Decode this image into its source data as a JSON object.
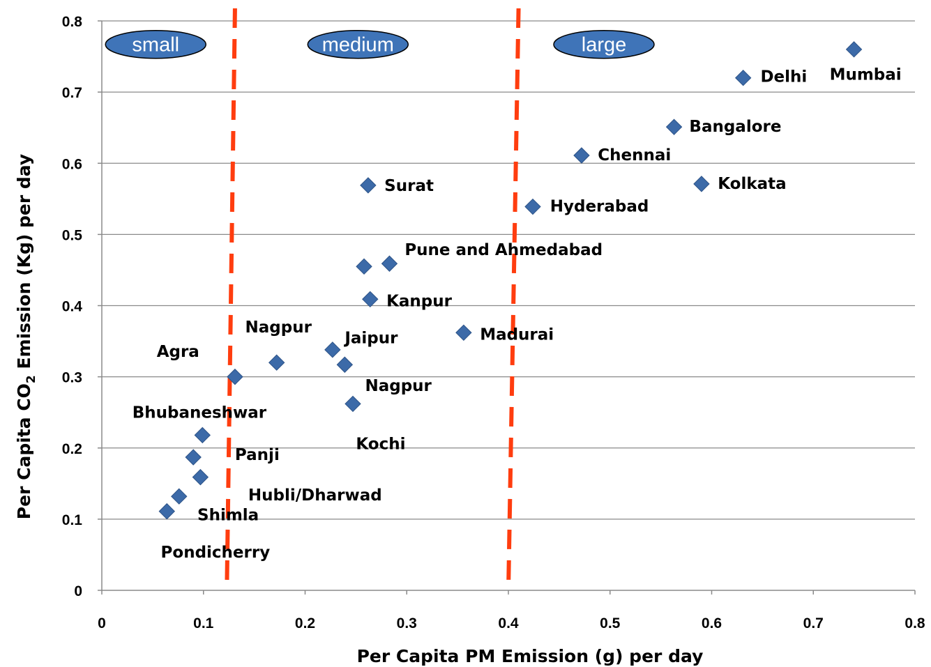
{
  "chart_data": {
    "type": "scatter",
    "xlabel": "Per Capita PM Emission (g) per day",
    "ylabel_parts": [
      "Per Capita CO",
      "2",
      " Emission (Kg) per day"
    ],
    "xlim": [
      0,
      0.8
    ],
    "ylim": [
      0,
      0.8
    ],
    "x_ticks": [
      "0",
      "0.1",
      "0.2",
      "0.3",
      "0.4",
      "0.5",
      "0.6",
      "0.7",
      "0.8"
    ],
    "y_ticks": [
      "0",
      "0.1",
      "0.2",
      "0.3",
      "0.4",
      "0.5",
      "0.6",
      "0.7",
      "0.8"
    ],
    "grid": "horizontal",
    "marker_color": "#3c6aa8",
    "divider_color": "#ff3d0f",
    "region_fill": "#3f74b8",
    "points": [
      {
        "x": 0.74,
        "y": 0.76
      },
      {
        "x": 0.631,
        "y": 0.72
      },
      {
        "x": 0.563,
        "y": 0.651
      },
      {
        "x": 0.472,
        "y": 0.611
      },
      {
        "x": 0.59,
        "y": 0.571
      },
      {
        "x": 0.424,
        "y": 0.539
      },
      {
        "x": 0.262,
        "y": 0.569
      },
      {
        "x": 0.283,
        "y": 0.459
      },
      {
        "x": 0.258,
        "y": 0.455
      },
      {
        "x": 0.264,
        "y": 0.409
      },
      {
        "x": 0.356,
        "y": 0.362
      },
      {
        "x": 0.227,
        "y": 0.338
      },
      {
        "x": 0.239,
        "y": 0.317
      },
      {
        "x": 0.172,
        "y": 0.32
      },
      {
        "x": 0.131,
        "y": 0.3
      },
      {
        "x": 0.247,
        "y": 0.262
      },
      {
        "x": 0.099,
        "y": 0.218
      },
      {
        "x": 0.09,
        "y": 0.187
      },
      {
        "x": 0.097,
        "y": 0.159
      },
      {
        "x": 0.076,
        "y": 0.132
      },
      {
        "x": 0.064,
        "y": 0.111
      }
    ],
    "labels": [
      {
        "text": "Mumbai",
        "x": 0.716,
        "y": 0.725
      },
      {
        "text": "Delhi",
        "x": 0.648,
        "y": 0.722
      },
      {
        "text": "Bangalore",
        "x": 0.578,
        "y": 0.652
      },
      {
        "text": "Chennai",
        "x": 0.488,
        "y": 0.612
      },
      {
        "text": "Kolkata",
        "x": 0.606,
        "y": 0.572
      },
      {
        "text": "Surat",
        "x": 0.278,
        "y": 0.569
      },
      {
        "text": "Hyderabad",
        "x": 0.441,
        "y": 0.54
      },
      {
        "text": "Pune and Ahmedabad",
        "x": 0.298,
        "y": 0.479
      },
      {
        "text": "Kanpur",
        "x": 0.28,
        "y": 0.407
      },
      {
        "text": "Madurai",
        "x": 0.372,
        "y": 0.36
      },
      {
        "text": "Nagpur",
        "x": 0.141,
        "y": 0.37
      },
      {
        "text": "Jaipur",
        "x": 0.239,
        "y": 0.355
      },
      {
        "text": "Agra",
        "x": 0.054,
        "y": 0.336
      },
      {
        "text": "Nagpur",
        "x": 0.259,
        "y": 0.288
      },
      {
        "text": "Bhubaneshwar",
        "x": 0.03,
        "y": 0.25
      },
      {
        "text": "Kochi",
        "x": 0.25,
        "y": 0.206
      },
      {
        "text": "Panji",
        "x": 0.131,
        "y": 0.191
      },
      {
        "text": "Hubli/Dharwad",
        "x": 0.144,
        "y": 0.134
      },
      {
        "text": "Shimla",
        "x": 0.094,
        "y": 0.106
      },
      {
        "text": "Pondicherry",
        "x": 0.058,
        "y": 0.054
      }
    ],
    "dividers": [
      {
        "x_top": 0.131,
        "x_bottom": 0.123
      },
      {
        "x_top": 0.41,
        "x_bottom": 0.4
      }
    ],
    "regions": [
      {
        "text": "small",
        "x": 0.053,
        "y": 0.767
      },
      {
        "text": "medium",
        "x": 0.252,
        "y": 0.767
      },
      {
        "text": "large",
        "x": 0.494,
        "y": 0.767
      }
    ]
  }
}
